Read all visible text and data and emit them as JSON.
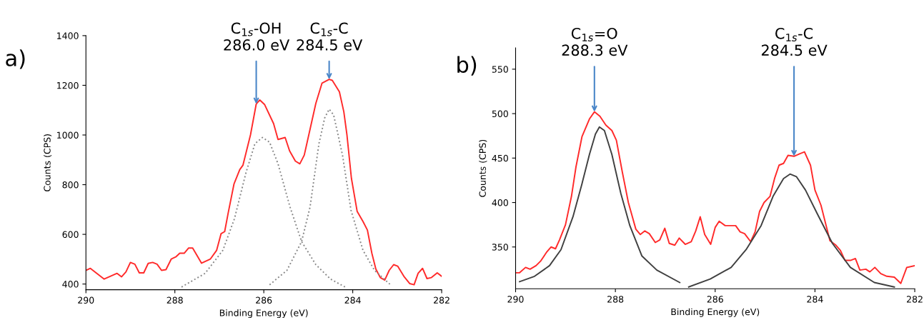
{
  "chart_data": [
    {
      "type": "line",
      "xlabel": "Binding Energy (eV)",
      "ylabel": "Counts (CPS)",
      "xlim": [
        290,
        282
      ],
      "ylim": [
        377,
        1400
      ],
      "xticks": [
        290,
        288,
        286,
        284,
        282
      ],
      "yticks": [
        400,
        600,
        800,
        1000,
        1200,
        1400
      ],
      "grid": false,
      "legend": false,
      "marker": "none",
      "annotations": [
        "a)",
        {
          "text": "C$_{1s}$-OH\n286.0 eV",
          "x": 286.17,
          "y": 1125
        },
        {
          "text": "C$_{1s}$-C\n284.5 eV",
          "x": 284.53,
          "y": 1224
        }
      ],
      "series": [
        {
          "color": "#ff2a2a",
          "line_style": "solid",
          "x": [
            290,
            289.9,
            289.59,
            289.3,
            289.2,
            289.1,
            289.0,
            288.9,
            288.8,
            288.7,
            288.6,
            288.5,
            288.4,
            288.3,
            288.2,
            288.08,
            287.98,
            287.89,
            287.79,
            287.69,
            287.6,
            287.4,
            287.2,
            287.06,
            286.96,
            286.88,
            286.8,
            286.67,
            286.54,
            286.47,
            286.3,
            286.17,
            286.09,
            285.98,
            285.78,
            285.68,
            285.52,
            285.42,
            285.29,
            285.19,
            285.09,
            284.96,
            284.83,
            284.69,
            284.53,
            284.46,
            284.3,
            284.2,
            284.13,
            284.03,
            283.9,
            283.77,
            283.67,
            283.57,
            283.48,
            283.38,
            283.28,
            283.18,
            283.08,
            282.99,
            282.85,
            282.72,
            282.62,
            282.53,
            282.43,
            282.33,
            282.23,
            282.1,
            282.0
          ],
          "values": [
            455,
            463,
            420,
            443,
            429,
            449,
            487,
            480,
            445,
            445,
            483,
            487,
            480,
            455,
            458,
            501,
            509,
            524,
            524,
            545,
            545,
            484,
            501,
            536,
            603,
            611,
            687,
            803,
            861,
            878,
            1000,
            1125,
            1141,
            1122,
            1046,
            982,
            990,
            936,
            895,
            884,
            919,
            1023,
            1127,
            1209,
            1224,
            1220,
            1174,
            1093,
            1000,
            826,
            692,
            652,
            617,
            524,
            460,
            426,
            416,
            455,
            478,
            472,
            431,
            402,
            397,
            443,
            463,
            422,
            426,
            445,
            431
          ]
        },
        {
          "color": "#888888",
          "line_style": "dotted",
          "x": [
            287.85,
            287.32,
            286.92,
            286.66,
            286.4,
            286.2,
            286.03,
            285.87,
            285.68,
            285.41,
            285.15,
            284.83,
            284.5,
            284.14
          ],
          "values": [
            388,
            443,
            536,
            663,
            849,
            965,
            990,
            971,
            884,
            710,
            571,
            478,
            420,
            385
          ]
        },
        {
          "color": "#888888",
          "line_style": "dotted",
          "x": [
            285.87,
            285.48,
            285.15,
            284.96,
            284.76,
            284.63,
            284.53,
            284.43,
            284.23,
            284.04,
            283.77,
            283.51,
            283.15
          ],
          "values": [
            397,
            455,
            571,
            710,
            965,
            1069,
            1104,
            1081,
            919,
            698,
            536,
            455,
            397
          ]
        }
      ]
    },
    {
      "type": "line",
      "xlabel": "Binding Energy (eV)",
      "ylabel": "Counts (CPS)",
      "xlim": [
        290,
        282
      ],
      "ylim": [
        303,
        574
      ],
      "xticks": [
        290,
        288,
        286,
        284,
        282
      ],
      "yticks": [
        350,
        400,
        450,
        500,
        550
      ],
      "grid": false,
      "legend": false,
      "marker": "none",
      "annotations": [
        "b)",
        {
          "text": "C$_{1s}$=O\n288.3 eV",
          "x": 288.42,
          "y": 502
        },
        {
          "text": "C$_{1s}$-C\n284.5 eV",
          "x": 284.42,
          "y": 452
        }
      ],
      "series": [
        {
          "color": "#ff2a2a",
          "line_style": "solid",
          "x": [
            290,
            289.92,
            289.8,
            289.71,
            289.59,
            289.5,
            289.38,
            289.29,
            289.2,
            289.12,
            289.0,
            288.88,
            288.79,
            288.67,
            288.52,
            288.42,
            288.31,
            288.19,
            288.07,
            287.98,
            287.86,
            287.74,
            287.59,
            287.5,
            287.41,
            287.32,
            287.2,
            287.11,
            287.01,
            286.92,
            286.81,
            286.72,
            286.6,
            286.48,
            286.39,
            286.3,
            286.21,
            286.09,
            286.0,
            285.92,
            285.8,
            285.59,
            285.5,
            285.41,
            285.29,
            285.2,
            285.11,
            285.02,
            284.9,
            284.81,
            284.72,
            284.63,
            284.54,
            284.42,
            284.3,
            284.21,
            284.09,
            284.0,
            283.88,
            283.7,
            283.58,
            283.49,
            283.4,
            283.28,
            283.19,
            283.1,
            282.98,
            282.9,
            282.8,
            282.68,
            282.56,
            282.41,
            282.28,
            282.16,
            282.0
          ],
          "values": [
            321,
            321,
            327,
            325,
            329,
            334,
            344,
            350,
            348,
            358,
            375,
            407,
            440,
            474,
            494,
            502,
            497,
            487,
            481,
            470,
            434,
            400,
            370,
            364,
            368,
            365,
            355,
            358,
            371,
            354,
            352,
            360,
            353,
            356,
            368,
            384,
            364,
            353,
            372,
            379,
            374,
            374,
            367,
            365,
            356,
            367,
            390,
            400,
            407,
            427,
            442,
            444,
            453,
            452,
            455,
            457,
            442,
            414,
            397,
            357,
            352,
            346,
            335,
            335,
            337,
            324,
            325,
            322,
            327,
            320,
            317,
            316,
            309,
            327,
            329
          ]
        },
        {
          "color": "#404040",
          "line_style": "solid",
          "x": [
            289.92,
            289.62,
            289.32,
            289.09,
            288.85,
            288.67,
            288.52,
            288.4,
            288.32,
            288.22,
            288.07,
            287.89,
            287.71,
            287.47,
            287.17,
            286.71
          ],
          "values": [
            311,
            317,
            329,
            347,
            384,
            421,
            454,
            477,
            485,
            481,
            454,
            410,
            374,
            340,
            324,
            310
          ]
        },
        {
          "color": "#404040",
          "line_style": "solid",
          "x": [
            286.53,
            286.1,
            285.68,
            285.38,
            285.08,
            284.84,
            284.63,
            284.5,
            284.37,
            284.19,
            283.95,
            283.65,
            283.29,
            282.81,
            282.41
          ],
          "values": [
            305,
            314,
            327,
            347,
            374,
            407,
            427,
            432,
            429,
            414,
            387,
            354,
            327,
            310,
            305
          ]
        }
      ]
    }
  ]
}
